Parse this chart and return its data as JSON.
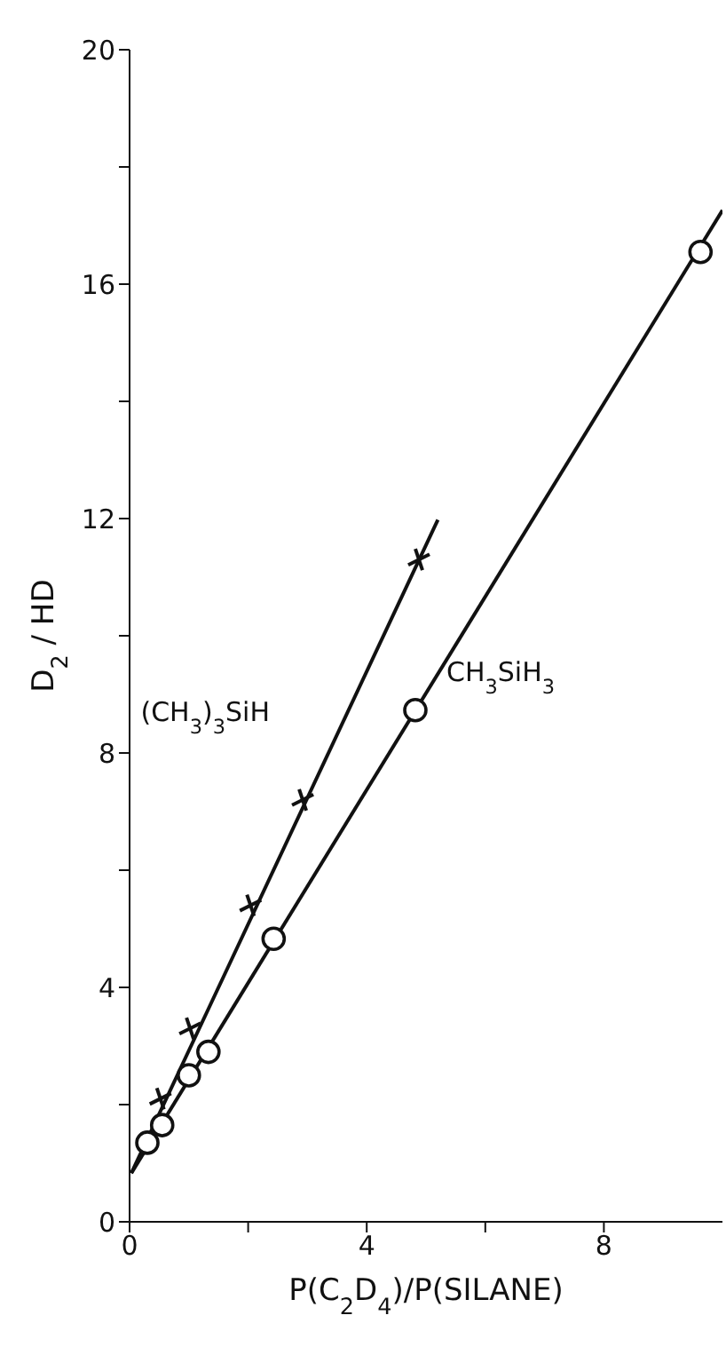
{
  "chart_data": {
    "type": "scatter",
    "xlabel": "P(C$_{2}$D$_{4}$)/P(SILANE)",
    "ylabel": "D$_{2}$ / HD",
    "xlim": [
      0,
      10
    ],
    "xticks": [
      0,
      {
        "value": 2,
        "label": null
      },
      4,
      {
        "value": 6,
        "label": null
      },
      8
    ],
    "ylim": [
      0,
      20
    ],
    "yticks": [
      0,
      {
        "value": 2,
        "label": null
      },
      4,
      {
        "value": 6,
        "label": null
      },
      8,
      {
        "value": 10,
        "label": null
      },
      12,
      {
        "value": 14,
        "label": null
      },
      16,
      {
        "value": 18,
        "label": null
      },
      20
    ],
    "series": [
      {
        "name": "(CH$_{3}$)$_{3}$SiH",
        "color": "#111111",
        "marker": "cross",
        "x": [
          0.52,
          1.02,
          2.04,
          2.92,
          4.88
        ],
        "values": [
          2.1,
          3.3,
          5.4,
          7.2,
          11.3
        ]
      },
      {
        "name": "CH$_{3}$SiH$_{3}$",
        "color": "#111111",
        "marker": "circle",
        "x": [
          0.3,
          0.55,
          1.0,
          1.33,
          2.43,
          4.82,
          9.63
        ],
        "values": [
          1.35,
          1.65,
          2.5,
          2.9,
          4.83,
          8.73,
          16.55
        ]
      },
      {
        "type": "line",
        "color": "#111111",
        "marker": "none",
        "line_style": "solid",
        "x": [
          0.03,
          5.2
        ],
        "values": [
          0.83,
          11.98
        ]
      },
      {
        "type": "line",
        "color": "#111111",
        "marker": "none",
        "line_style": "solid",
        "x": [
          0.03,
          10.0
        ],
        "values": [
          0.83,
          17.26
        ]
      }
    ]
  }
}
